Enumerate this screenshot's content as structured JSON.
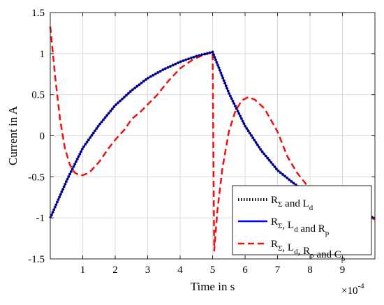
{
  "chart_data": {
    "type": "line",
    "xlabel": "Time in s",
    "ylabel": "Current in A",
    "x_multiplier_label": {
      "base": "×10",
      "exponent": "-4"
    },
    "xlim": [
      0,
      10
    ],
    "ylim": [
      -1.5,
      1.5
    ],
    "x_ticks": [
      1,
      2,
      3,
      4,
      5,
      6,
      7,
      8,
      9
    ],
    "x_tick_labels": [
      "1",
      "2",
      "3",
      "4",
      "5",
      "6",
      "7",
      "8",
      "9"
    ],
    "y_ticks": [
      -1.5,
      -1,
      -0.5,
      0,
      0.5,
      1,
      1.5
    ],
    "y_tick_labels": [
      "-1.5",
      "-1",
      "-0.5",
      "0",
      "0.5",
      "1",
      "1.5"
    ],
    "grid": true,
    "legend_position": "bottom-right",
    "series": [
      {
        "legend": {
          "parts": [
            [
              "R",
              "Σ"
            ],
            [
              " and L",
              "d"
            ]
          ]
        },
        "color": "#000000",
        "style": "dotted",
        "x": [
          0,
          0.5,
          1,
          1.5,
          2,
          2.5,
          3,
          3.5,
          4,
          4.5,
          5,
          5.5,
          6,
          6.5,
          7,
          7.5,
          8,
          8.5,
          9,
          9.5,
          10
        ],
        "y": [
          -1.0,
          -0.55,
          -0.15,
          0.13,
          0.37,
          0.55,
          0.7,
          0.81,
          0.9,
          0.97,
          1.02,
          0.52,
          0.12,
          -0.18,
          -0.42,
          -0.58,
          -0.72,
          -0.82,
          -0.9,
          -0.96,
          -1.0
        ]
      },
      {
        "legend": {
          "parts": [
            [
              "R",
              "Σ"
            ],
            [
              ", L",
              "d"
            ],
            [
              " and R",
              "p"
            ]
          ]
        },
        "color": "#0000ff",
        "style": "solid",
        "x": [
          0,
          0.5,
          1,
          1.5,
          2,
          2.5,
          3,
          3.5,
          4,
          4.5,
          5,
          5.5,
          6,
          6.5,
          7,
          7.5,
          8,
          8.5,
          9,
          9.5,
          10
        ],
        "y": [
          -1.0,
          -0.55,
          -0.15,
          0.13,
          0.37,
          0.55,
          0.7,
          0.81,
          0.9,
          0.97,
          1.02,
          0.52,
          0.12,
          -0.18,
          -0.42,
          -0.58,
          -0.72,
          -0.82,
          -0.9,
          -0.96,
          -1.0
        ]
      },
      {
        "legend": {
          "parts": [
            [
              "R",
              "Σ"
            ],
            [
              ", L",
              "d"
            ],
            [
              ", R",
              "p"
            ],
            [
              " and C",
              "p"
            ]
          ]
        },
        "color": "#ee1111",
        "style": "dashed",
        "x": [
          0,
          0.15,
          0.3,
          0.45,
          0.6,
          0.75,
          0.9,
          1.0,
          1.2,
          1.5,
          1.8,
          2.0,
          2.3,
          2.5,
          2.8,
          3.0,
          3.3,
          3.6,
          4.0,
          4.4,
          4.7,
          5.0,
          5.05,
          5.15,
          5.3,
          5.5,
          5.7,
          5.9,
          6.1,
          6.3,
          6.6,
          7.0,
          7.3,
          7.6,
          8.0,
          8.4,
          8.8,
          9.0,
          9.3,
          9.6,
          10
        ],
        "y": [
          1.33,
          0.72,
          0.2,
          -0.15,
          -0.35,
          -0.45,
          -0.48,
          -0.48,
          -0.45,
          -0.32,
          -0.15,
          -0.05,
          0.08,
          0.2,
          0.3,
          0.38,
          0.5,
          0.65,
          0.82,
          0.93,
          0.98,
          1.02,
          -1.4,
          -0.9,
          -0.4,
          0.05,
          0.3,
          0.43,
          0.47,
          0.44,
          0.33,
          0.05,
          -0.25,
          -0.45,
          -0.65,
          -0.72,
          -0.76,
          -0.78,
          -0.85,
          -0.95,
          -1.02
        ]
      }
    ]
  }
}
